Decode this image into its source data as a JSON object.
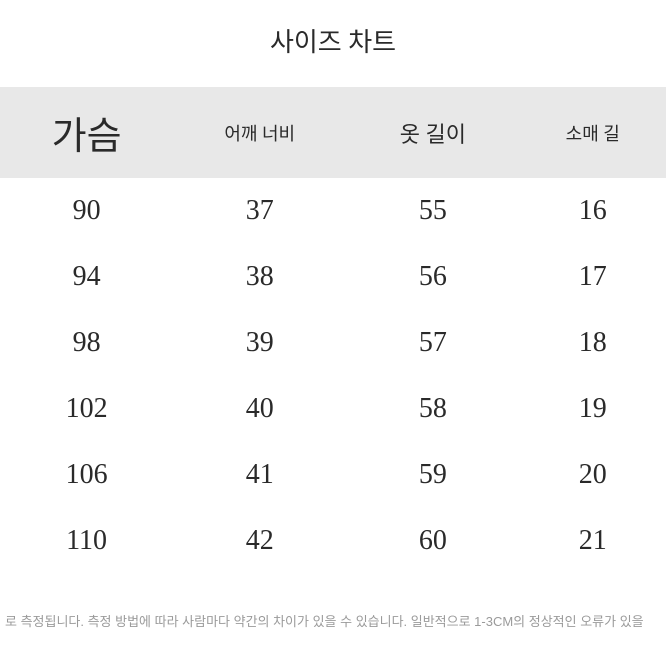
{
  "title": "사이즈 차트",
  "table": {
    "type": "table",
    "columns": [
      {
        "label": "가슴"
      },
      {
        "label": "어깨 너비"
      },
      {
        "label": "옷 길이"
      },
      {
        "label": "소매 길"
      }
    ],
    "rows": [
      [
        "90",
        "37",
        "55",
        "16"
      ],
      [
        "94",
        "38",
        "56",
        "17"
      ],
      [
        "98",
        "39",
        "57",
        "18"
      ],
      [
        "102",
        "40",
        "58",
        "19"
      ],
      [
        "106",
        "41",
        "59",
        "20"
      ],
      [
        "110",
        "42",
        "60",
        "21"
      ]
    ],
    "header_bg": "#e8e8e8",
    "text_color": "#2a2a2a",
    "cell_fontsize": 28,
    "header_fontsizes": [
      38,
      18,
      22,
      18
    ]
  },
  "footnote": "로 측정됩니다. 측정 방법에 따라 사람마다 약간의 차이가 있을 수 있습니다. 일반적으로 1-3CM의 정상적인 오류가 있을",
  "background_color": "#ffffff"
}
